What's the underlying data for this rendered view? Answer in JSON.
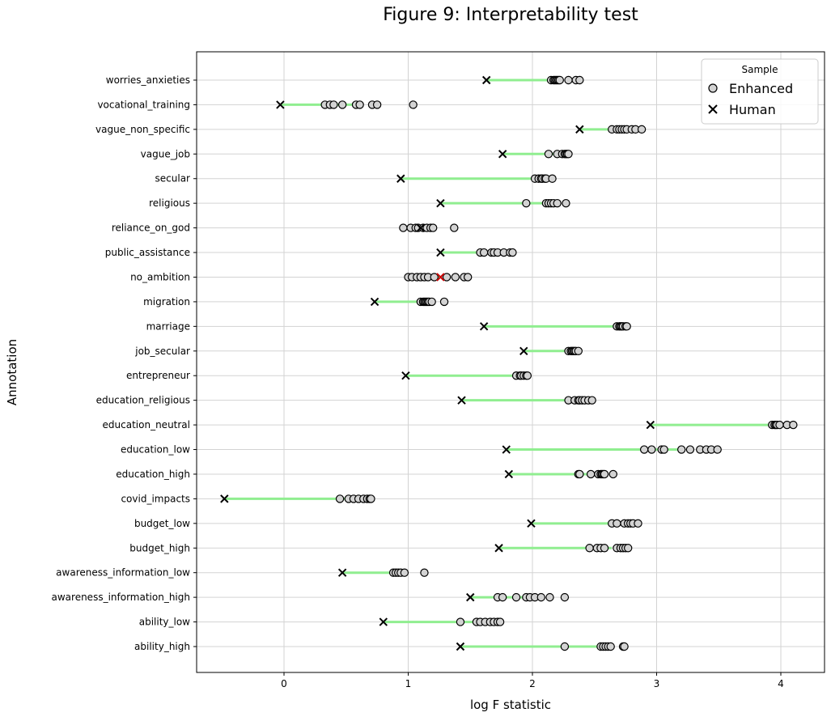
{
  "chart_data": {
    "type": "scatter",
    "title": "Figure 9: Interpretability test",
    "xlabel": "log F statistic",
    "ylabel": "Annotation",
    "xlim": [
      -0.7,
      4.35
    ],
    "xticks": [
      0,
      1,
      2,
      3,
      4
    ],
    "grid": true,
    "legend": {
      "title": "Sample",
      "position": "top-right",
      "entries": [
        "Enhanced",
        "Human"
      ]
    },
    "colors": {
      "connector": "#90ee90",
      "human": "#000000",
      "human_highlight": "#cc0000",
      "enhanced_fill": "#d3d3d3",
      "enhanced_edge": "#000000"
    },
    "categories": [
      "worries_anxieties",
      "vocational_training",
      "vague_non_specific",
      "vague_job",
      "secular",
      "religious",
      "reliance_on_god",
      "public_assistance",
      "no_ambition",
      "migration",
      "marriage",
      "job_secular",
      "entrepreneur",
      "education_religious",
      "education_neutral",
      "education_low",
      "education_high",
      "covid_impacts",
      "budget_low",
      "budget_high",
      "awareness_information_low",
      "awareness_information_high",
      "ability_low",
      "ability_high"
    ],
    "human": [
      1.63,
      -0.03,
      2.38,
      1.76,
      0.94,
      1.26,
      1.1,
      1.26,
      1.26,
      0.73,
      1.61,
      1.93,
      0.98,
      1.43,
      2.95,
      1.79,
      1.81,
      -0.48,
      1.99,
      1.73,
      0.47,
      1.5,
      0.8,
      1.42
    ],
    "human_highlight_index": 8,
    "enhanced": [
      [
        2.15,
        2.17,
        2.18,
        2.19,
        2.2,
        2.21,
        2.22,
        2.29,
        2.35,
        2.38
      ],
      [
        0.33,
        0.37,
        0.4,
        0.47,
        0.58,
        0.61,
        0.71,
        0.75,
        1.04
      ],
      [
        2.64,
        2.68,
        2.7,
        2.72,
        2.74,
        2.76,
        2.8,
        2.83,
        2.88
      ],
      [
        2.13,
        2.2,
        2.24,
        2.26,
        2.27,
        2.28,
        2.29
      ],
      [
        2.02,
        2.05,
        2.07,
        2.08,
        2.1,
        2.11,
        2.16
      ],
      [
        1.95,
        2.11,
        2.13,
        2.15,
        2.17,
        2.2,
        2.27
      ],
      [
        0.96,
        1.02,
        1.06,
        1.08,
        1.12,
        1.15,
        1.18,
        1.2,
        1.37
      ],
      [
        1.58,
        1.61,
        1.67,
        1.69,
        1.72,
        1.77,
        1.82,
        1.84
      ],
      [
        1.0,
        1.03,
        1.07,
        1.1,
        1.13,
        1.16,
        1.21,
        1.31,
        1.38,
        1.45,
        1.48
      ],
      [
        1.1,
        1.12,
        1.13,
        1.14,
        1.15,
        1.16,
        1.17,
        1.19,
        1.29
      ],
      [
        2.68,
        2.7,
        2.71,
        2.72,
        2.73,
        2.75,
        2.76
      ],
      [
        2.29,
        2.31,
        2.32,
        2.33,
        2.34,
        2.35,
        2.37
      ],
      [
        1.87,
        1.9,
        1.91,
        1.93,
        1.95,
        1.96
      ],
      [
        2.29,
        2.34,
        2.37,
        2.38,
        2.4,
        2.42,
        2.45,
        2.48
      ],
      [
        3.93,
        3.95,
        3.96,
        3.97,
        3.99,
        4.05,
        4.1
      ],
      [
        2.9,
        2.96,
        3.04,
        3.06,
        3.2,
        3.27,
        3.35,
        3.4,
        3.44,
        3.49
      ],
      [
        2.37,
        2.38,
        2.47,
        2.53,
        2.55,
        2.56,
        2.57,
        2.58,
        2.65
      ],
      [
        0.45,
        0.52,
        0.56,
        0.6,
        0.64,
        0.67,
        0.69,
        0.7
      ],
      [
        2.64,
        2.68,
        2.74,
        2.77,
        2.79,
        2.81,
        2.85
      ],
      [
        2.46,
        2.52,
        2.55,
        2.58,
        2.68,
        2.71,
        2.73,
        2.75,
        2.77
      ],
      [
        0.88,
        0.9,
        0.92,
        0.94,
        0.97,
        1.13
      ],
      [
        1.72,
        1.76,
        1.87,
        1.95,
        1.98,
        2.02,
        2.07,
        2.14,
        2.26
      ],
      [
        1.42,
        1.55,
        1.58,
        1.62,
        1.66,
        1.69,
        1.72,
        1.74
      ],
      [
        2.26,
        2.55,
        2.57,
        2.59,
        2.61,
        2.63,
        2.73,
        2.74
      ]
    ]
  }
}
